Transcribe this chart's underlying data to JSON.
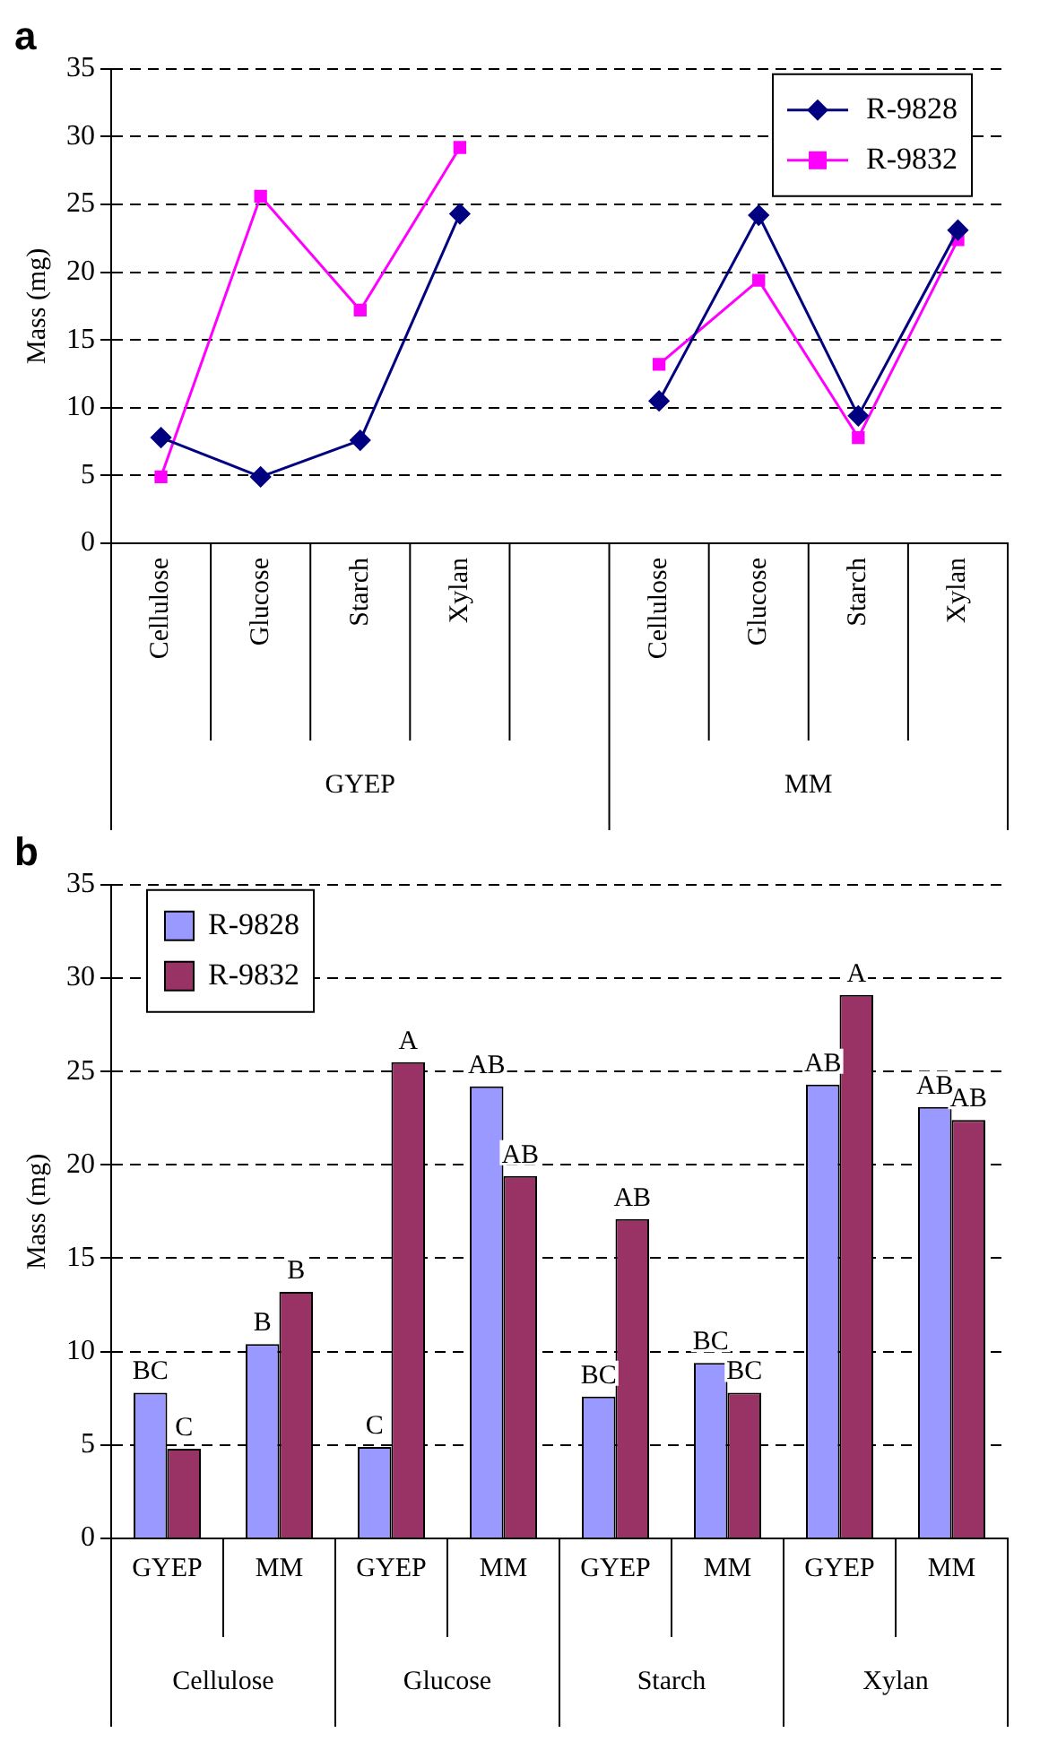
{
  "chart_data": [
    {
      "type": "line",
      "title": "a",
      "ylabel": "Mass (mg)",
      "categories": [
        "Cellulose",
        "Glucose",
        "Starch",
        "Xylan",
        null,
        "Cellulose",
        "Glucose",
        "Starch",
        "Xylan"
      ],
      "annotations": [
        "GYEP",
        "MM"
      ],
      "ylim": [
        0,
        35
      ],
      "yticks": [
        0,
        5,
        10,
        15,
        20,
        25,
        30,
        35
      ],
      "grid": "y",
      "legend": "top right",
      "line_style": "solid",
      "series": [
        {
          "name": "R-9828",
          "color": "#000080",
          "marker": "diamond",
          "values": [
            7.8,
            4.9,
            7.6,
            24.3,
            null,
            10.5,
            24.2,
            9.4,
            23.1
          ]
        },
        {
          "name": "R-9832",
          "color": "#ff00ff",
          "marker": "square",
          "values": [
            4.9,
            25.6,
            17.2,
            29.2,
            null,
            13.2,
            19.4,
            7.8,
            22.4
          ]
        }
      ]
    },
    {
      "type": "bar",
      "title": "b",
      "ylabel": "Mass (mg)",
      "categories": [
        "GYEP",
        "MM",
        "GYEP",
        "MM",
        "GYEP",
        "MM",
        "GYEP",
        "MM"
      ],
      "annotations": [
        "Cellulose",
        "Glucose",
        "Starch",
        "Xylan"
      ],
      "ylim": [
        0,
        35
      ],
      "yticks": [
        0,
        5,
        10,
        15,
        20,
        25,
        30,
        35
      ],
      "grid": "y",
      "legend": "top left",
      "series": [
        {
          "name": "R-9828",
          "color": "#9999ff",
          "values": [
            7.8,
            10.4,
            4.9,
            24.2,
            7.6,
            9.4,
            24.3,
            23.1
          ],
          "value_labels": [
            "BC",
            "B",
            "C",
            "AB",
            "BC",
            "BC",
            "AB",
            "AB"
          ]
        },
        {
          "name": "R-9832",
          "color": "#993366",
          "values": [
            4.8,
            13.2,
            25.5,
            19.4,
            17.1,
            7.8,
            29.1,
            22.4
          ],
          "value_labels": [
            "C",
            "B",
            "A",
            "AB",
            "AB",
            "BC",
            "A",
            "AB"
          ]
        }
      ]
    }
  ]
}
